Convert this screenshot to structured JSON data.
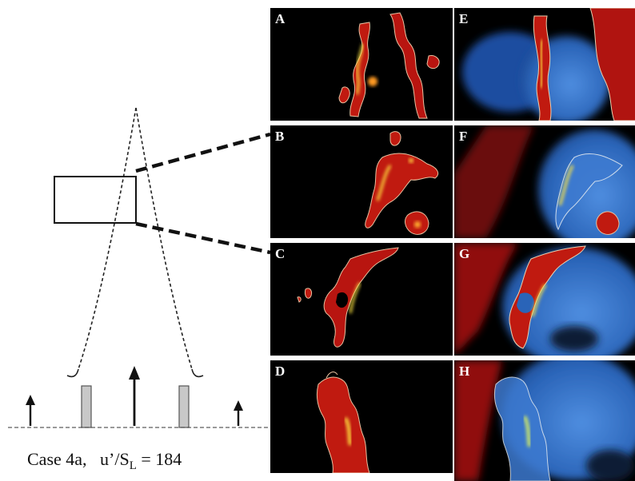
{
  "caption": {
    "case_label": "Case 4a,",
    "ratio_prefix": "u’/S",
    "ratio_subscript": "L",
    "ratio_suffix": " = 184"
  },
  "panels": [
    {
      "label": "A",
      "style": "flame"
    },
    {
      "label": "E",
      "style": "mixed"
    },
    {
      "label": "B",
      "style": "flame"
    },
    {
      "label": "F",
      "style": "mixed"
    },
    {
      "label": "C",
      "style": "flame"
    },
    {
      "label": "G",
      "style": "mixed"
    },
    {
      "label": "D",
      "style": "flame"
    },
    {
      "label": "H",
      "style": "mixed"
    }
  ],
  "colors": {
    "flame_red": "#c01a10",
    "flame_yellow": "#ffe640",
    "flow_blue": "#2f6fc8",
    "background": "#000000"
  }
}
